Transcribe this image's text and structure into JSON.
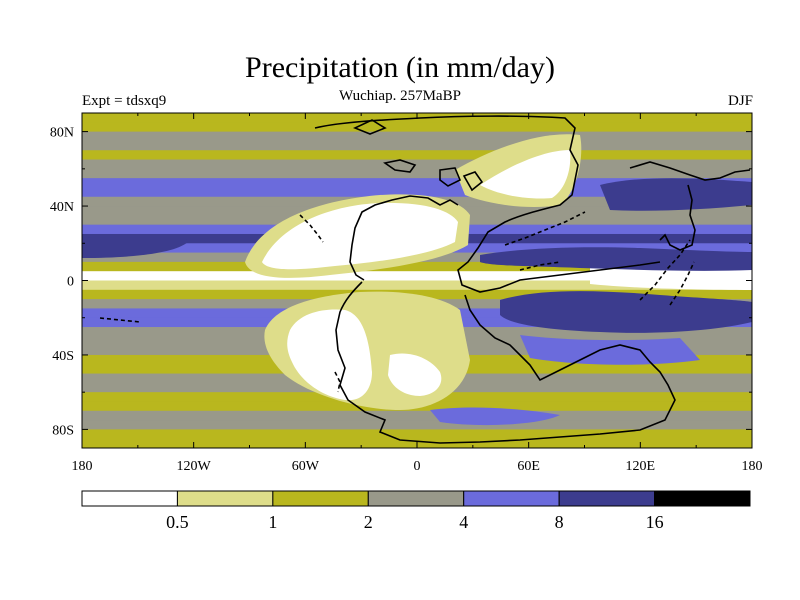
{
  "title": "Precipitation (in mm/day)",
  "subtitle": "Wuchiap. 257MaBP",
  "experiment": "Expt = tdsxq9",
  "season": "DJF",
  "y_axis": {
    "labels": [
      "80N",
      "40N",
      "0",
      "40S",
      "80S"
    ],
    "values": [
      80,
      40,
      0,
      -40,
      -80
    ]
  },
  "x_axis": {
    "labels": [
      "180",
      "120W",
      "60W",
      "0",
      "60E",
      "120E",
      "180"
    ],
    "values": [
      -180,
      -120,
      -60,
      0,
      60,
      120,
      180
    ]
  },
  "colorbar": {
    "colors": [
      "#ffffff",
      "#dedd8a",
      "#b9b71e",
      "#99998a",
      "#6b6bdc",
      "#3c3c8e",
      "#000000"
    ],
    "labels": [
      "0.5",
      "1",
      "2",
      "4",
      "8",
      "16"
    ]
  },
  "bands": {
    "latitudes": [
      90,
      85,
      80,
      75,
      70,
      65,
      60,
      55,
      50,
      45,
      40,
      35,
      30,
      25,
      20,
      15,
      10,
      5,
      0,
      -5,
      -10,
      -15,
      -20,
      -25,
      -30,
      -35,
      -40,
      -45,
      -50,
      -55,
      -60,
      -65,
      -70,
      -75,
      -80,
      -85,
      -90
    ],
    "levels": [
      2,
      2,
      3,
      3,
      2,
      3,
      3,
      4,
      4,
      3,
      3,
      3,
      4,
      5,
      4,
      3,
      2,
      0,
      1,
      2,
      3,
      4,
      4,
      3,
      3,
      3,
      2,
      2,
      3,
      3,
      2,
      2,
      3,
      3,
      2,
      2,
      2
    ]
  },
  "palette": {
    "background": "#ffffff",
    "frame": "#000000"
  }
}
